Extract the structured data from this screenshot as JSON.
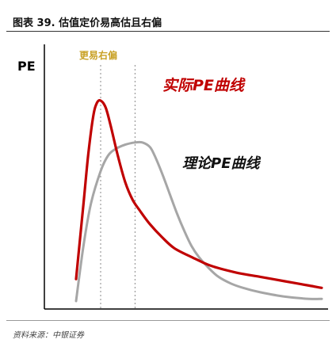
{
  "figure": {
    "title": "图表 39. 估值定价易高估且右偏",
    "source": "资料来源：中银证券"
  },
  "chart_data": {
    "type": "line",
    "title": "",
    "xlabel": "",
    "ylabel": "PE",
    "x_range": [
      0,
      100
    ],
    "y_range": [
      0,
      100
    ],
    "grid": false,
    "legend": "none",
    "annotation": "更易右偏",
    "series": [
      {
        "name": "实际PE曲线",
        "color": "#c00000",
        "x": [
          0,
          3,
          5,
          7,
          8.5,
          10,
          12,
          14,
          17,
          20,
          23,
          26,
          30,
          35,
          40,
          47,
          55,
          65,
          75,
          85,
          95,
          100
        ],
        "y": [
          10,
          44,
          67,
          84,
          90,
          91,
          88,
          80,
          66,
          54,
          46,
          41,
          35,
          29,
          24,
          20,
          16,
          13,
          11,
          9,
          7,
          6
        ]
      },
      {
        "name": "理论PE曲线",
        "color": "#a6a6a6",
        "x": [
          0,
          3,
          6,
          10,
          13,
          16,
          20,
          24,
          27,
          30,
          32,
          35,
          38,
          41,
          44,
          47,
          50,
          54,
          58,
          63,
          68,
          75,
          85,
          95,
          100
        ],
        "y": [
          0,
          25,
          44,
          59,
          66,
          69,
          71,
          72,
          72,
          70,
          66,
          58,
          49,
          40,
          32,
          25,
          20,
          15,
          11,
          8,
          6,
          4,
          2,
          1,
          1
        ]
      }
    ]
  }
}
